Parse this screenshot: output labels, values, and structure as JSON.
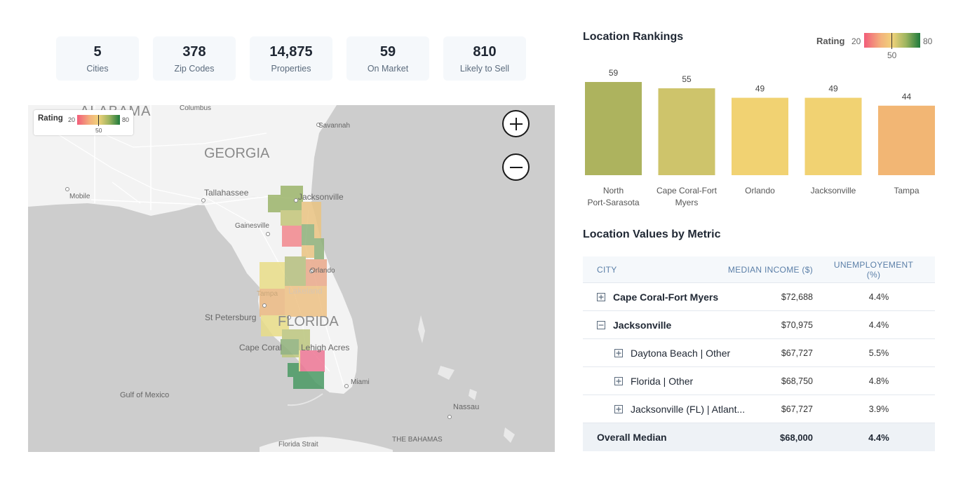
{
  "stats": [
    {
      "value": "5",
      "label": "Cities"
    },
    {
      "value": "378",
      "label": "Zip Codes"
    },
    {
      "value": "14,875",
      "label": "Properties"
    },
    {
      "value": "59",
      "label": "On Market"
    },
    {
      "value": "810",
      "label": "Likely to Sell"
    }
  ],
  "map": {
    "legend": {
      "title": "Rating",
      "min": "20",
      "mid": "50",
      "max": "80"
    },
    "labels": [
      {
        "text": "ALABAMA"
      },
      {
        "text": "Columbus"
      },
      {
        "text": "Savannah"
      },
      {
        "text": "GEORGIA"
      },
      {
        "text": "Mobile"
      },
      {
        "text": "Tallahassee"
      },
      {
        "text": "Jacksonville"
      },
      {
        "text": "Gainesville"
      },
      {
        "text": "Orlando"
      },
      {
        "text": "Tampa"
      },
      {
        "text": "Lakeland"
      },
      {
        "text": "St Petersburg"
      },
      {
        "text": "FLORIDA"
      },
      {
        "text": "Cape Coral"
      },
      {
        "text": "Lehigh Acres"
      },
      {
        "text": "Miami"
      },
      {
        "text": "Gulf of Mexico"
      },
      {
        "text": "Nassau"
      },
      {
        "text": "Florida Strait"
      },
      {
        "text": "THE BAHAMAS"
      }
    ],
    "zoom_in_icon": "plus-icon",
    "zoom_out_icon": "minus-icon"
  },
  "rankings": {
    "title": "Location Rankings",
    "legend": {
      "title": "Rating",
      "min": "20",
      "mid": "50",
      "max": "80"
    }
  },
  "chart_data": {
    "type": "bar",
    "title": "Location Rankings",
    "categories": [
      "North Port-Sarasota",
      "Cape Coral-Fort Myers",
      "Orlando",
      "Jacksonville",
      "Tampa"
    ],
    "category_lines": [
      [
        "North",
        "Port-Sarasota"
      ],
      [
        "Cape Coral-Fort",
        "Myers"
      ],
      [
        "Orlando"
      ],
      [
        "Jacksonville"
      ],
      [
        "Tampa"
      ]
    ],
    "values": [
      59,
      55,
      49,
      49,
      44
    ],
    "colors": [
      "#adb35e",
      "#cec46b",
      "#f1d272",
      "#f1d272",
      "#f2b674"
    ],
    "ylim": [
      0,
      59
    ],
    "grid": false,
    "legend": "top-right"
  },
  "metrics": {
    "title": "Location Values by Metric",
    "headers": {
      "city": "CITY",
      "income": "MEDIAN INCOME ($)",
      "unemp": "UNEMPLOYEMENT (%)"
    },
    "rows": [
      {
        "city": "Cape Coral-Fort Myers",
        "income": "$72,688",
        "unemp": "4.4%"
      },
      {
        "city": "Jacksonville",
        "income": "$70,975",
        "unemp": "4.4%"
      },
      {
        "city": "Daytona Beach | Other",
        "income": "$67,727",
        "unemp": "5.5%"
      },
      {
        "city": "Florida | Other",
        "income": "$68,750",
        "unemp": "4.8%"
      },
      {
        "city": "Jacksonville (FL) | Atlant...",
        "income": "$67,727",
        "unemp": "3.9%"
      }
    ],
    "footer": {
      "label": "Overall Median",
      "income": "$68,000",
      "unemp": "4.4%"
    }
  }
}
